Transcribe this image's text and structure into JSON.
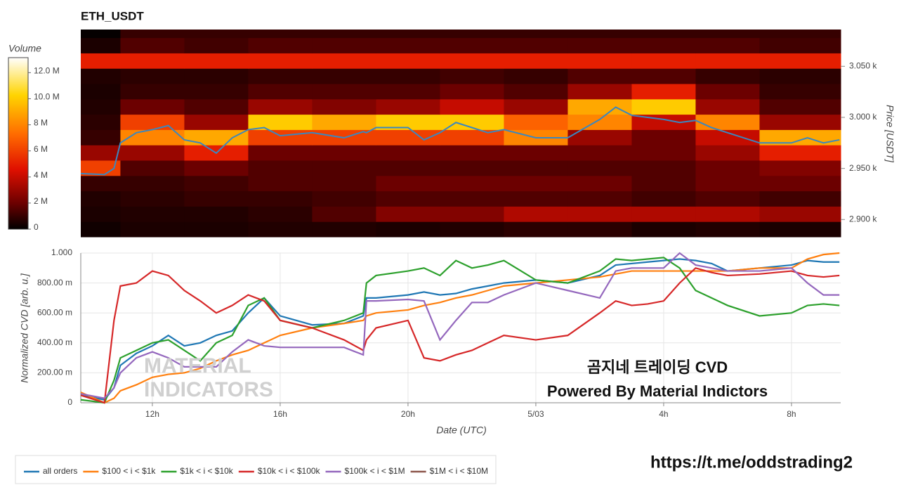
{
  "chart_data": [
    {
      "type": "heatmap",
      "title": "ETH_USDT",
      "x_edges": [
        9.76,
        11,
        13,
        15,
        17,
        19,
        21,
        23,
        25,
        27,
        29,
        31,
        33.54
      ],
      "y_edges": [
        2883,
        2898,
        2913,
        2928,
        2943,
        2958,
        2973,
        2988,
        3003,
        3018,
        3033,
        3048,
        3063,
        3078,
        3086
      ],
      "z": [
        [
          0.3,
          0.5,
          0.5,
          0.6,
          0.6,
          0.5,
          0.6,
          0.8,
          0.8,
          0.5,
          0.6,
          0.5
        ],
        [
          0.5,
          0.6,
          0.6,
          0.8,
          1.5,
          2.5,
          2.5,
          3.5,
          3.5,
          3.5,
          3.5,
          3
        ],
        [
          0.6,
          0.8,
          1,
          1,
          1.2,
          1.5,
          1.5,
          1.5,
          1.5,
          1.2,
          1.5,
          1.2
        ],
        [
          1,
          1,
          1.2,
          1.5,
          1.5,
          2,
          2,
          2,
          2,
          1.5,
          2,
          2
        ],
        [
          6,
          1.5,
          2,
          1.5,
          1.5,
          1.5,
          1.5,
          1.5,
          1.5,
          1.5,
          2,
          2.5
        ],
        [
          3,
          3,
          5,
          2,
          2,
          2,
          2,
          2,
          2,
          2,
          3,
          5
        ],
        [
          1,
          8,
          9,
          6,
          6,
          6,
          6,
          8,
          3,
          2,
          4,
          9
        ],
        [
          0.8,
          6,
          3,
          10,
          9,
          10,
          10,
          7,
          8,
          4,
          8,
          3
        ],
        [
          0.6,
          2,
          1.5,
          3,
          2.5,
          3,
          4,
          3,
          9,
          10,
          3,
          1.5
        ],
        [
          0.5,
          1,
          1,
          1.5,
          1.5,
          1.5,
          2,
          1.5,
          3,
          5,
          2,
          1
        ],
        [
          0.6,
          0.8,
          0.8,
          1,
          1,
          1,
          1.2,
          1,
          1.5,
          1.5,
          1,
          0.8
        ],
        [
          5,
          5,
          5,
          5,
          5,
          5,
          5,
          5,
          5,
          5,
          5,
          5
        ],
        [
          0.5,
          1.5,
          1.2,
          1.5,
          1.5,
          1.5,
          1.5,
          1.5,
          1.5,
          1.5,
          1.5,
          1.2
        ],
        [
          0.1,
          1,
          1,
          1,
          1,
          1,
          1,
          1,
          1,
          1,
          1,
          1
        ]
      ],
      "xlim": [
        9.76,
        33.54
      ],
      "ylim": [
        2883,
        3086
      ],
      "yticks": [
        {
          "value": 2900,
          "label": "2.900 k"
        },
        {
          "value": 2950,
          "label": "2.950 k"
        },
        {
          "value": 3000,
          "label": "3.000 k"
        },
        {
          "value": 3050,
          "label": "3.050 k"
        }
      ],
      "ylabel": "Price [USDT]",
      "colorbar": {
        "title": "Volume",
        "zlim": [
          0,
          13.15
        ],
        "ticks": [
          0,
          {
            "value": 2,
            "label": "2 M"
          },
          {
            "value": 4,
            "label": "4 M"
          },
          {
            "value": 6,
            "label": "6 M"
          },
          {
            "value": 8,
            "label": "8 M"
          },
          {
            "value": 10,
            "label": "10.0 M"
          },
          {
            "value": 12,
            "label": "12.0 M"
          }
        ],
        "colorscale": [
          [
            0,
            "#000000"
          ],
          [
            0.15,
            "#6b0000"
          ],
          [
            0.35,
            "#e01000"
          ],
          [
            0.55,
            "#ff6a00"
          ],
          [
            0.78,
            "#ffd400"
          ],
          [
            1,
            "#ffffff"
          ]
        ]
      },
      "line": {
        "color": "#3a87c0",
        "x": [
          9.76,
          10.5,
          10.8,
          11,
          11.5,
          12,
          12.5,
          13,
          13.5,
          14,
          14.5,
          15,
          15.5,
          16,
          17,
          18,
          18.6,
          18.7,
          19,
          20,
          20.5,
          21,
          21.5,
          22,
          22.5,
          23,
          24,
          25,
          26,
          26.5,
          27,
          27.5,
          28,
          28.5,
          29,
          29.5,
          30,
          31,
          32,
          32.5,
          33,
          33.5
        ],
        "values": [
          2945,
          2944,
          2950,
          2975,
          2985,
          2988,
          2992,
          2978,
          2975,
          2965,
          2980,
          2988,
          2990,
          2982,
          2985,
          2980,
          2986,
          2985,
          2990,
          2990,
          2978,
          2985,
          2995,
          2990,
          2985,
          2988,
          2980,
          2980,
          2998,
          3010,
          3002,
          3000,
          2998,
          2995,
          2997,
          2990,
          2985,
          2975,
          2975,
          2980,
          2975,
          2978
        ]
      }
    },
    {
      "type": "line",
      "x": [
        9.76,
        10.5,
        10.8,
        11,
        11.5,
        12,
        12.5,
        13,
        13.5,
        14,
        14.5,
        15,
        15.5,
        16,
        17,
        18,
        18.6,
        18.7,
        19,
        20,
        20.5,
        21,
        21.5,
        22,
        22.5,
        23,
        24,
        25,
        26,
        26.5,
        27,
        27.5,
        28,
        28.5,
        29,
        29.5,
        30,
        31,
        32,
        32.5,
        33,
        33.5
      ],
      "series": [
        {
          "name": "all orders",
          "color": "#1f77b4",
          "values": [
            0.05,
            0.02,
            0.1,
            0.25,
            0.33,
            0.38,
            0.45,
            0.38,
            0.4,
            0.45,
            0.48,
            0.6,
            0.7,
            0.58,
            0.52,
            0.53,
            0.58,
            0.7,
            0.7,
            0.72,
            0.74,
            0.72,
            0.73,
            0.76,
            0.78,
            0.8,
            0.82,
            0.8,
            0.85,
            0.92,
            0.93,
            0.94,
            0.95,
            0.96,
            0.95,
            0.93,
            0.88,
            0.9,
            0.92,
            0.95,
            0.94,
            0.94
          ]
        },
        {
          "name": "$100 < i < $1k",
          "color": "#ff7f0e",
          "values": [
            0.07,
            0.0,
            0.03,
            0.08,
            0.12,
            0.17,
            0.19,
            0.2,
            0.23,
            0.28,
            0.32,
            0.35,
            0.4,
            0.45,
            0.5,
            0.53,
            0.55,
            0.58,
            0.6,
            0.62,
            0.65,
            0.67,
            0.7,
            0.72,
            0.75,
            0.78,
            0.8,
            0.82,
            0.84,
            0.86,
            0.88,
            0.88,
            0.88,
            0.88,
            0.88,
            0.88,
            0.88,
            0.9,
            0.9,
            0.96,
            0.99,
            1.0
          ]
        },
        {
          "name": "$1k < i < $10k",
          "color": "#2ca02c",
          "values": [
            0.02,
            0.0,
            0.15,
            0.3,
            0.35,
            0.4,
            0.42,
            0.35,
            0.28,
            0.4,
            0.45,
            0.65,
            0.7,
            0.55,
            0.5,
            0.55,
            0.6,
            0.8,
            0.85,
            0.88,
            0.9,
            0.85,
            0.95,
            0.9,
            0.92,
            0.95,
            0.82,
            0.8,
            0.88,
            0.96,
            0.95,
            0.96,
            0.97,
            0.9,
            0.75,
            0.7,
            0.65,
            0.58,
            0.6,
            0.65,
            0.66,
            0.65
          ]
        },
        {
          "name": "$10k < i < $100k",
          "color": "#d62728",
          "values": [
            0.05,
            0.0,
            0.55,
            0.78,
            0.8,
            0.88,
            0.85,
            0.75,
            0.68,
            0.6,
            0.65,
            0.72,
            0.68,
            0.55,
            0.5,
            0.42,
            0.35,
            0.42,
            0.5,
            0.55,
            0.3,
            0.28,
            0.32,
            0.35,
            0.4,
            0.45,
            0.42,
            0.45,
            0.6,
            0.68,
            0.65,
            0.66,
            0.68,
            0.8,
            0.9,
            0.87,
            0.85,
            0.86,
            0.88,
            0.85,
            0.84,
            0.85
          ]
        },
        {
          "name": "$100k < i < $1M",
          "color": "#9467bd",
          "values": [
            0.06,
            0.03,
            0.1,
            0.2,
            0.3,
            0.34,
            0.3,
            0.24,
            0.24,
            0.24,
            0.34,
            0.42,
            0.38,
            0.37,
            0.37,
            0.37,
            0.32,
            0.68,
            0.68,
            0.69,
            0.68,
            0.42,
            0.55,
            0.67,
            0.67,
            0.72,
            0.8,
            0.75,
            0.7,
            0.88,
            0.9,
            0.9,
            0.9,
            1.0,
            0.92,
            0.9,
            0.88,
            0.88,
            0.9,
            0.8,
            0.72,
            0.72
          ]
        },
        {
          "name": "$1M < i < $10M",
          "color": "#8c564b",
          "values": [
            null,
            null,
            null,
            null,
            null,
            null,
            null,
            null,
            null,
            null,
            null,
            null,
            null,
            null,
            null,
            null,
            null,
            null,
            null,
            null,
            null,
            null,
            null,
            null,
            null,
            null,
            null,
            null,
            null,
            null,
            null,
            null,
            null,
            null,
            null,
            null,
            null,
            null,
            null,
            null,
            null,
            null
          ]
        }
      ],
      "xlim": [
        9.76,
        33.54
      ],
      "xticks": [
        {
          "value": 12,
          "label": "12h"
        },
        {
          "value": 16,
          "label": "16h"
        },
        {
          "value": 20,
          "label": "20h"
        },
        {
          "value": 24,
          "label": "5/03"
        },
        {
          "value": 28,
          "label": "4h"
        },
        {
          "value": 32,
          "label": "8h"
        }
      ],
      "ylim": [
        0,
        1
      ],
      "yticks": [
        0,
        {
          "value": 0.2,
          "label": "200.00 m"
        },
        {
          "value": 0.4,
          "label": "400.00 m"
        },
        {
          "value": 0.6,
          "label": "600.00 m"
        },
        {
          "value": 0.8,
          "label": "800.00 m"
        },
        {
          "value": 1,
          "label": "1.000"
        }
      ],
      "xlabel": "Date (UTC)",
      "ylabel": "Normalized CVD [arb. u.]",
      "grid": true,
      "legend": "bottom-left",
      "watermark": [
        "MATERIAL",
        "INDICATORS"
      ],
      "annotations": [
        "곰지네 트레이딩 CVD",
        "Powered By Material Indictors"
      ]
    }
  ],
  "footer_link": "https://t.me/oddstrading2"
}
